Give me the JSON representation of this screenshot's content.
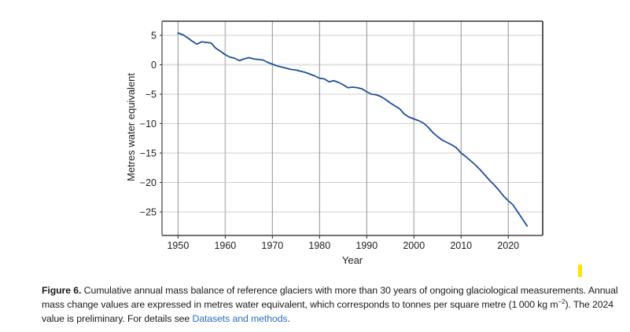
{
  "chart_data": {
    "type": "line",
    "title": "",
    "xlabel": "Year",
    "ylabel": "Metres water equivalent",
    "xlim": [
      1946.6,
      2027.3
    ],
    "ylim": [
      -29,
      7.4
    ],
    "x_ticks": [
      1950,
      1960,
      1970,
      1980,
      1990,
      2000,
      2010,
      2020
    ],
    "y_ticks": [
      5,
      0,
      -5,
      -10,
      -15,
      -20,
      -25
    ],
    "x_tick_labels": [
      "1950",
      "1960",
      "1970",
      "1980",
      "1990",
      "2000",
      "2010",
      "2020"
    ],
    "y_tick_labels": [
      "5",
      "0",
      "−5",
      "−10",
      "−15",
      "−20",
      "−25"
    ],
    "grid": true,
    "legend": "none",
    "series": [
      {
        "name": "Cumulative annual mass balance",
        "color": "#1f4e93",
        "x": [
          1950,
          1951,
          1952,
          1953,
          1954,
          1955,
          1956,
          1957,
          1958,
          1959,
          1960,
          1961,
          1962,
          1963,
          1964,
          1965,
          1966,
          1967,
          1968,
          1969,
          1970,
          1971,
          1972,
          1973,
          1974,
          1975,
          1976,
          1977,
          1978,
          1979,
          1980,
          1981,
          1982,
          1983,
          1984,
          1985,
          1986,
          1987,
          1988,
          1989,
          1990,
          1991,
          1992,
          1993,
          1994,
          1995,
          1996,
          1997,
          1998,
          1999,
          2000,
          2001,
          2002,
          2003,
          2004,
          2005,
          2006,
          2007,
          2008,
          2009,
          2010,
          2011,
          2012,
          2013,
          2014,
          2015,
          2016,
          2017,
          2018,
          2019,
          2020,
          2021,
          2022,
          2023,
          2024
        ],
        "values": [
          5.4,
          5.1,
          4.6,
          4.0,
          3.5,
          3.9,
          3.8,
          3.7,
          2.8,
          2.3,
          1.7,
          1.3,
          1.1,
          0.7,
          1.0,
          1.2,
          1.0,
          0.9,
          0.8,
          0.4,
          0.1,
          -0.2,
          -0.4,
          -0.6,
          -0.8,
          -0.9,
          -1.1,
          -1.3,
          -1.6,
          -1.9,
          -2.3,
          -2.4,
          -2.9,
          -2.7,
          -3.0,
          -3.4,
          -3.9,
          -3.8,
          -3.9,
          -4.1,
          -4.6,
          -5.0,
          -5.1,
          -5.4,
          -5.9,
          -6.5,
          -7.0,
          -7.5,
          -8.4,
          -8.9,
          -9.2,
          -9.5,
          -9.9,
          -10.6,
          -11.5,
          -12.2,
          -12.8,
          -13.2,
          -13.6,
          -14.1,
          -15.0,
          -15.6,
          -16.3,
          -17.0,
          -17.8,
          -18.7,
          -19.6,
          -20.4,
          -21.3,
          -22.3,
          -23.1,
          -23.8,
          -25.0,
          -26.2,
          -27.4
        ]
      }
    ]
  },
  "caption": {
    "figure_label": "Figure 6.",
    "text_1": " Cumulative annual mass balance of reference glaciers with more than 30 years of ongoing glaciological measurements. Annual mass change values are expressed in metres water equivalent, which corresponds to tonnes per square metre (1 000 kg m",
    "superscript": "−2",
    "text_2": "). The 2024 value is preliminary. For details see ",
    "link_text": "Datasets and methods",
    "text_3": "."
  },
  "colors": {
    "line": "#1f4e93",
    "link": "#2a6ebb",
    "marker": "#ffe600",
    "frame": "#222222",
    "grid_vertical": "#9a9a9a",
    "grid_horizontal": "#cfcfcf",
    "grid_zero": "#e4e4e4"
  }
}
